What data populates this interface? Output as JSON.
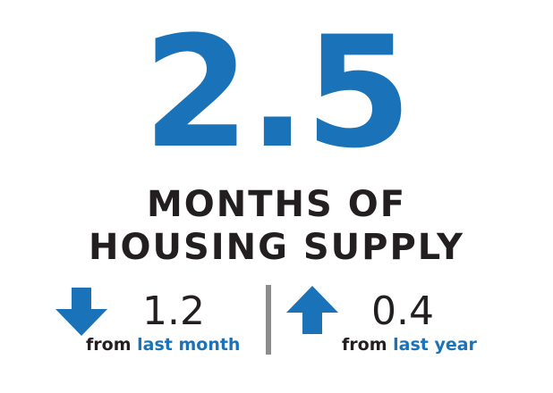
{
  "headline": {
    "value": "2.5",
    "line1": "MONTHS OF",
    "line2": "HOUSING SUPPLY"
  },
  "monthly_change": {
    "direction": "down",
    "icon": "arrow-down-icon",
    "value": "1.2",
    "caption_prefix": "from",
    "caption_highlight": "last month"
  },
  "yearly_change": {
    "direction": "up",
    "icon": "arrow-up-icon",
    "value": "0.4",
    "caption_prefix": "from",
    "caption_highlight": "last year"
  },
  "colors": {
    "accent": "#1a73b8",
    "text": "#231f20",
    "divider": "#8c8c8c",
    "background": "#ffffff"
  }
}
